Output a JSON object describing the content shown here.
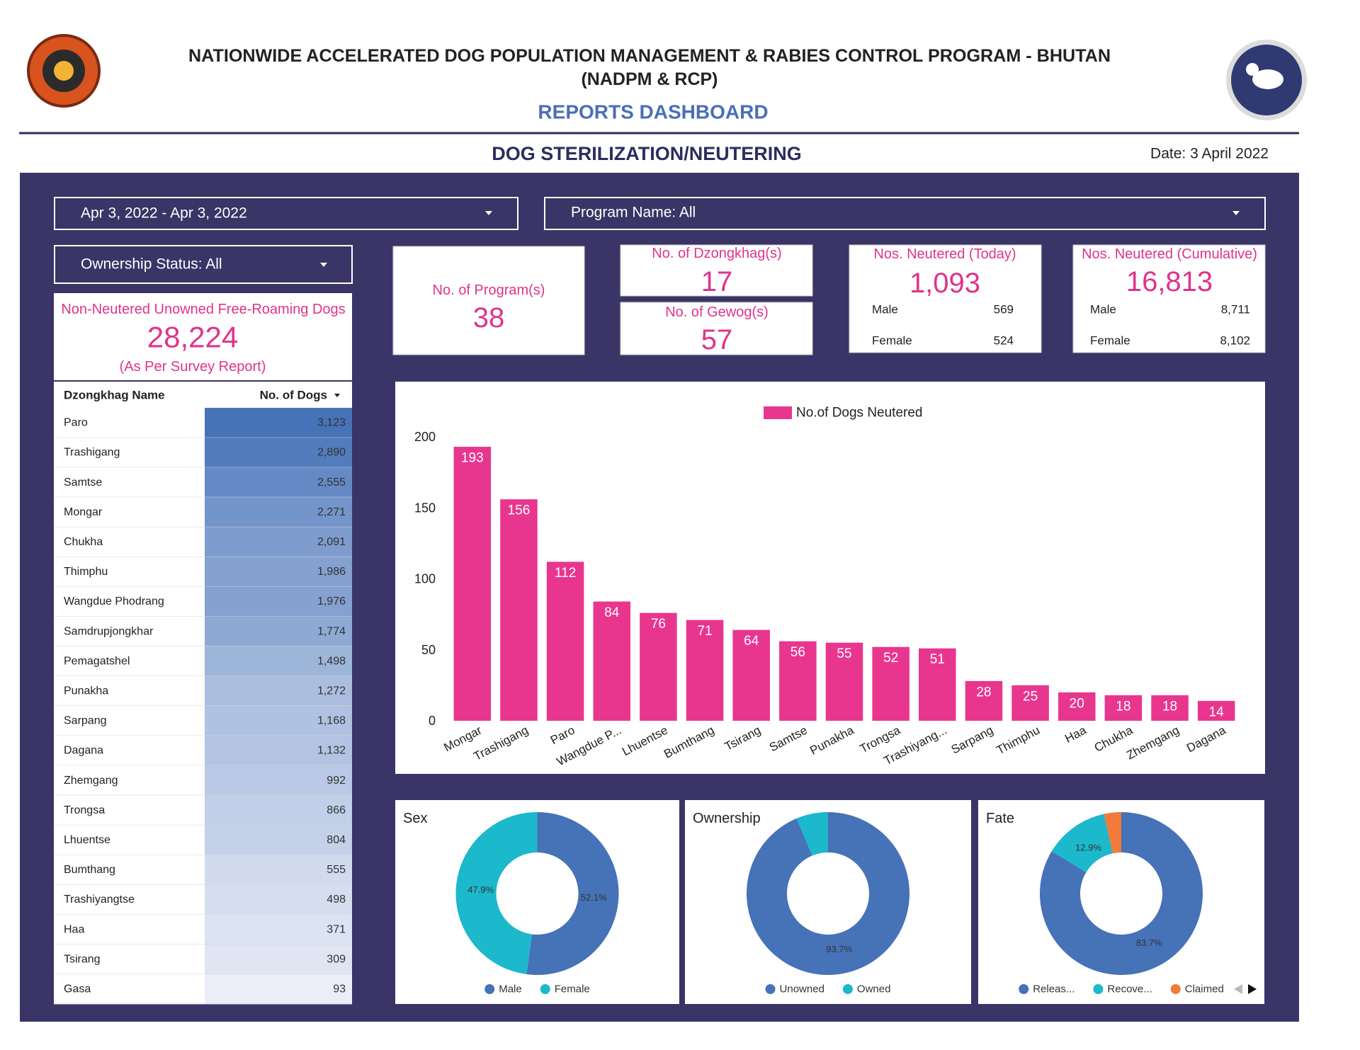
{
  "header": {
    "title": "NATIONWIDE ACCELERATED DOG POPULATION MANAGEMENT & RABIES CONTROL PROGRAM - BHUTAN",
    "subtitle": "(NADPM & RCP)",
    "dashboard": "REPORTS DASHBOARD",
    "section": "DOG STERILIZATION/NEUTERING",
    "date": "Date: 3 April 2022"
  },
  "filters": {
    "date_range": "Apr 3, 2022 - Apr 3, 2022",
    "program": "Program Name: All",
    "ownership": "Ownership Status: All"
  },
  "survey": {
    "label": "Non-Neutered Unowned Free-Roaming Dogs",
    "value": "28,224",
    "note": "(As Per Survey Report)"
  },
  "kpis": {
    "programs": {
      "label": "No. of Program(s)",
      "value": 38
    },
    "dzongkhags": {
      "label": "No. of Dzongkhag(s)",
      "value": 17
    },
    "gewogs": {
      "label": "No. of Gewog(s)",
      "value": 57
    },
    "today": {
      "label": "Nos. Neutered (Today)",
      "value": "1,093",
      "male_label": "Male",
      "male": 569,
      "female_label": "Female",
      "female": 524
    },
    "cumulative": {
      "label": "Nos. Neutered (Cumulative)",
      "value": "16,813",
      "male_label": "Male",
      "male": "8,711",
      "female_label": "Female",
      "female": "8,102"
    }
  },
  "table": {
    "columns": [
      "Dzongkhag Name",
      "No. of Dogs"
    ],
    "rows": [
      {
        "name": "Paro",
        "dogs": {
          "value": 3123,
          "label": "3,123"
        }
      },
      {
        "name": "Trashigang",
        "dogs": {
          "value": 2890,
          "label": "2,890"
        }
      },
      {
        "name": "Samtse",
        "dogs": {
          "value": 2555,
          "label": "2,555"
        }
      },
      {
        "name": "Mongar",
        "dogs": {
          "value": 2271,
          "label": "2,271"
        }
      },
      {
        "name": "Chukha",
        "dogs": {
          "value": 2091,
          "label": "2,091"
        }
      },
      {
        "name": "Thimphu",
        "dogs": {
          "value": 1986,
          "label": "1,986"
        }
      },
      {
        "name": "Wangdue Phodrang",
        "dogs": {
          "value": 1976,
          "label": "1,976"
        }
      },
      {
        "name": "Samdrupjongkhar",
        "dogs": {
          "value": 1774,
          "label": "1,774"
        }
      },
      {
        "name": "Pemagatshel",
        "dogs": {
          "value": 1498,
          "label": "1,498"
        }
      },
      {
        "name": "Punakha",
        "dogs": {
          "value": 1272,
          "label": "1,272"
        }
      },
      {
        "name": "Sarpang",
        "dogs": {
          "value": 1168,
          "label": "1,168"
        }
      },
      {
        "name": "Dagana",
        "dogs": {
          "value": 1132,
          "label": "1,132"
        }
      },
      {
        "name": "Zhemgang",
        "dogs": {
          "value": 992,
          "label": "992"
        }
      },
      {
        "name": "Trongsa",
        "dogs": {
          "value": 866,
          "label": "866"
        }
      },
      {
        "name": "Lhuentse",
        "dogs": {
          "value": 804,
          "label": "804"
        }
      },
      {
        "name": "Bumthang",
        "dogs": {
          "value": 555,
          "label": "555"
        }
      },
      {
        "name": "Trashiyangtse",
        "dogs": {
          "value": 498,
          "label": "498"
        }
      },
      {
        "name": "Haa",
        "dogs": {
          "value": 371,
          "label": "371"
        }
      },
      {
        "name": "Tsirang",
        "dogs": {
          "value": 309,
          "label": "309"
        }
      },
      {
        "name": "Gasa",
        "dogs": {
          "value": 93,
          "label": "93"
        }
      }
    ]
  },
  "chart_data": [
    {
      "type": "bar",
      "categories": [
        "Mongar",
        "Trashigang",
        "Paro",
        "Wangdue P...",
        "Lhuentse",
        "Bumthang",
        "Tsirang",
        "Samtse",
        "Punakha",
        "Trongsa",
        "Trashiyang...",
        "Sarpang",
        "Thimphu",
        "Haa",
        "Chukha",
        "Zhemgang",
        "Dagana"
      ],
      "series": [
        {
          "name": "No.of Dogs Neutered",
          "color": "#e8368f",
          "values": [
            193,
            156,
            112,
            84,
            76,
            71,
            64,
            56,
            55,
            52,
            51,
            28,
            25,
            20,
            18,
            18,
            14
          ]
        }
      ],
      "ylim": [
        0,
        200
      ],
      "yticks": [
        0,
        50,
        100,
        150,
        200
      ],
      "grid": false,
      "legend": "top"
    },
    {
      "type": "pie",
      "title": "Sex",
      "categories": [
        "Male",
        "Female"
      ],
      "values": [
        52.1,
        47.9
      ],
      "value_labels": [
        "52.1%",
        "47.9%"
      ],
      "colors": [
        "#4672b8",
        "#1cb8cc"
      ]
    },
    {
      "type": "pie",
      "title": "Ownership",
      "categories": [
        "Unowned",
        "Owned"
      ],
      "values": [
        93.7,
        6.3
      ],
      "value_labels": [
        "93.7%",
        null
      ],
      "colors": [
        "#4672b8",
        "#1cb8cc"
      ]
    },
    {
      "type": "pie",
      "title": "Fate",
      "categories": [
        "Releas...",
        "Recove...",
        "Claimed"
      ],
      "values": [
        83.7,
        12.9,
        3.4
      ],
      "value_labels": [
        "83.7%",
        "12.9%",
        null
      ],
      "colors": [
        "#4672b8",
        "#1cb8cc",
        "#f07b3a"
      ]
    }
  ]
}
